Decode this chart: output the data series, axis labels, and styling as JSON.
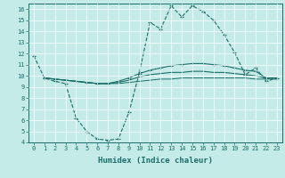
{
  "xlabel": "Humidex (Indice chaleur)",
  "xlim": [
    -0.5,
    23.5
  ],
  "ylim": [
    4,
    16.5
  ],
  "xticks": [
    0,
    1,
    2,
    3,
    4,
    5,
    6,
    7,
    8,
    9,
    10,
    11,
    12,
    13,
    14,
    15,
    16,
    17,
    18,
    19,
    20,
    21,
    22,
    23
  ],
  "yticks": [
    4,
    5,
    6,
    7,
    8,
    9,
    10,
    11,
    12,
    13,
    14,
    15,
    16
  ],
  "bg_color": "#c5ebe8",
  "line_color": "#1a6e6a",
  "line1_x": [
    0,
    1,
    2,
    3,
    4,
    5,
    6,
    7,
    8,
    9,
    10,
    11,
    12,
    13,
    14,
    15,
    16,
    17,
    18,
    19,
    20,
    21,
    22,
    23
  ],
  "line1_y": [
    11.8,
    9.8,
    9.5,
    9.3,
    6.2,
    5.0,
    4.3,
    4.2,
    4.3,
    6.7,
    10.3,
    14.8,
    14.2,
    16.3,
    15.3,
    16.3,
    15.8,
    15.0,
    13.7,
    12.1,
    10.1,
    10.7,
    9.5,
    9.8
  ],
  "line2_x": [
    1,
    2,
    3,
    4,
    5,
    6,
    7,
    8,
    9,
    10,
    11,
    12,
    13,
    14,
    15,
    16,
    17,
    18,
    19,
    20,
    21,
    22,
    23
  ],
  "line2_y": [
    9.8,
    9.7,
    9.6,
    9.5,
    9.4,
    9.3,
    9.3,
    9.5,
    9.8,
    10.2,
    10.5,
    10.7,
    10.9,
    11.0,
    11.1,
    11.1,
    11.0,
    10.9,
    10.7,
    10.5,
    10.4,
    9.8,
    9.8
  ],
  "line3_x": [
    1,
    2,
    3,
    4,
    5,
    6,
    7,
    8,
    9,
    10,
    11,
    12,
    13,
    14,
    15,
    16,
    17,
    18,
    19,
    20,
    21,
    22,
    23
  ],
  "line3_y": [
    9.8,
    9.7,
    9.6,
    9.5,
    9.4,
    9.3,
    9.3,
    9.4,
    9.6,
    9.9,
    10.1,
    10.2,
    10.3,
    10.3,
    10.4,
    10.4,
    10.3,
    10.3,
    10.2,
    10.1,
    10.0,
    9.8,
    9.8
  ],
  "line4_x": [
    1,
    2,
    3,
    4,
    5,
    6,
    7,
    8,
    9,
    10,
    11,
    12,
    13,
    14,
    15,
    16,
    17,
    18,
    19,
    20,
    21,
    22,
    23
  ],
  "line4_y": [
    9.8,
    9.7,
    9.6,
    9.5,
    9.4,
    9.3,
    9.3,
    9.3,
    9.4,
    9.5,
    9.6,
    9.7,
    9.7,
    9.8,
    9.8,
    9.8,
    9.8,
    9.8,
    9.8,
    9.8,
    9.7,
    9.7,
    9.7
  ]
}
